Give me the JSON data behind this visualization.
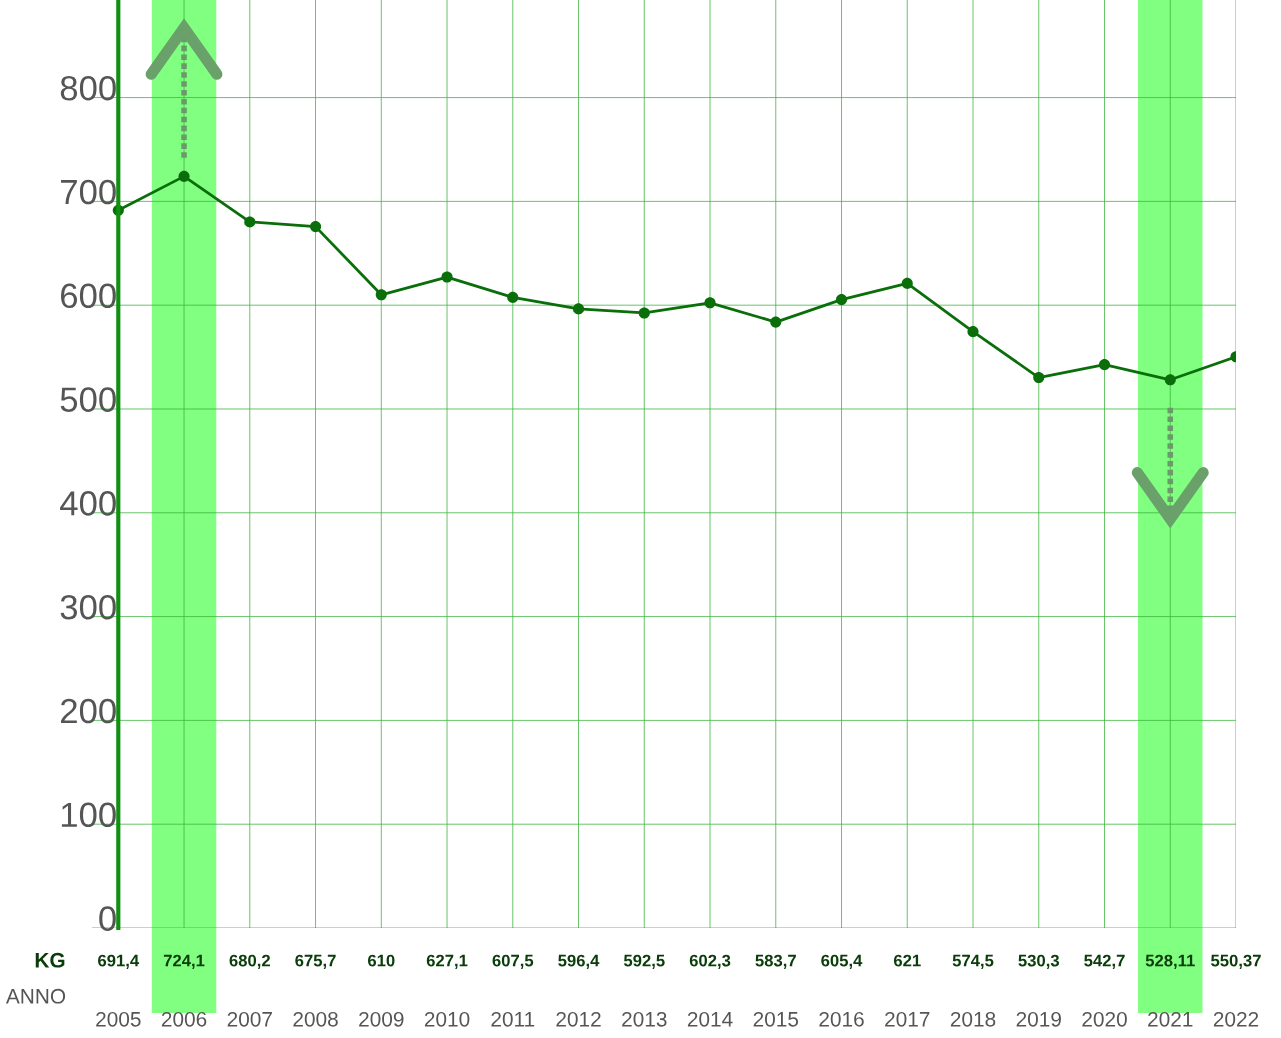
{
  "chart_data": {
    "type": "line",
    "xlabel": "ANNO",
    "ylabel": "KG",
    "categories": [
      "2005",
      "2006",
      "2007",
      "2008",
      "2009",
      "2010",
      "2011",
      "2012",
      "2013",
      "2014",
      "2015",
      "2016",
      "2017",
      "2018",
      "2019",
      "2020",
      "2021",
      "2022"
    ],
    "series": [
      {
        "color": "#0a6e0a",
        "values": [
          691.4,
          724.1,
          680.2,
          675.7,
          610,
          627.1,
          607.5,
          596.4,
          592.5,
          602.3,
          583.7,
          605.4,
          621,
          574.5,
          530.3,
          542.7,
          528.11,
          550.37
        ],
        "value_labels": [
          "691,4",
          "724,1",
          "680,2",
          "675,7",
          "610",
          "627,1",
          "607,5",
          "596,4",
          "592,5",
          "602,3",
          "583,7",
          "605,4",
          "621",
          "574,5",
          "530,3",
          "542,7",
          "528,11",
          "550,37"
        ]
      }
    ],
    "ylim": [
      0,
      894
    ],
    "yticks": [
      0,
      100,
      200,
      300,
      400,
      500,
      600,
      700,
      800
    ],
    "grid": true,
    "marker": "circle",
    "line_style": "solid",
    "bands": [
      {
        "axis": "x",
        "from": "2006",
        "to": "2006",
        "color": "#80ff80"
      },
      {
        "axis": "x",
        "from": "2021",
        "to": "2021",
        "color": "#80ff80"
      }
    ]
  }
}
